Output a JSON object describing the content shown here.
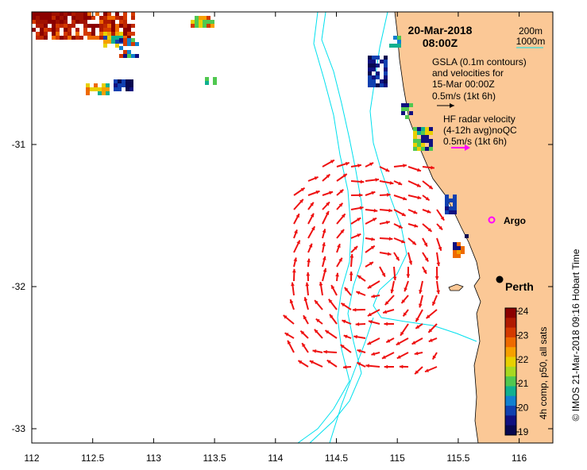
{
  "colors": {
    "land": "#fbc896",
    "ocean": "#ffffff",
    "contour": "#00e0ee",
    "radar_arrow": "#ee1111",
    "hf_arrow": "#ff00ff",
    "argo": "#ff00ff",
    "city": "#000000"
  },
  "map": {
    "lon_range": [
      112,
      116.3
    ],
    "lat_range": [
      -33.1,
      -30.03
    ],
    "x_ticks": [
      "112",
      "112.5",
      "113",
      "113.5",
      "114",
      "114.5",
      "115",
      "115.5",
      "116"
    ],
    "y_ticks": [
      "-31",
      "-32",
      "-33"
    ]
  },
  "title": {
    "date": "20-Mar-2018",
    "time": "08:00Z"
  },
  "isobath_legend": {
    "line1": "200m",
    "line2": "1000m"
  },
  "gsla_legend": {
    "line1": "GSLA (0.1m contours)",
    "line2": "and velocities for",
    "line3": "15-Mar 00:00Z",
    "line4": "0.5m/s (1kt 6h)"
  },
  "hf_legend": {
    "line1": "HF radar velocity",
    "line2": "(4-12h avg)noQC",
    "line3": "0.5m/s (1kt 6h)"
  },
  "labels": {
    "argo": "Argo",
    "city": "Perth"
  },
  "colorbar": {
    "ticks": [
      "24",
      "23",
      "22",
      "21",
      "20",
      "19"
    ],
    "label": "4h comp, p50, all sats"
  },
  "credit": "© IMOS 21-Mar-2018 09:16 Hobart Time"
}
